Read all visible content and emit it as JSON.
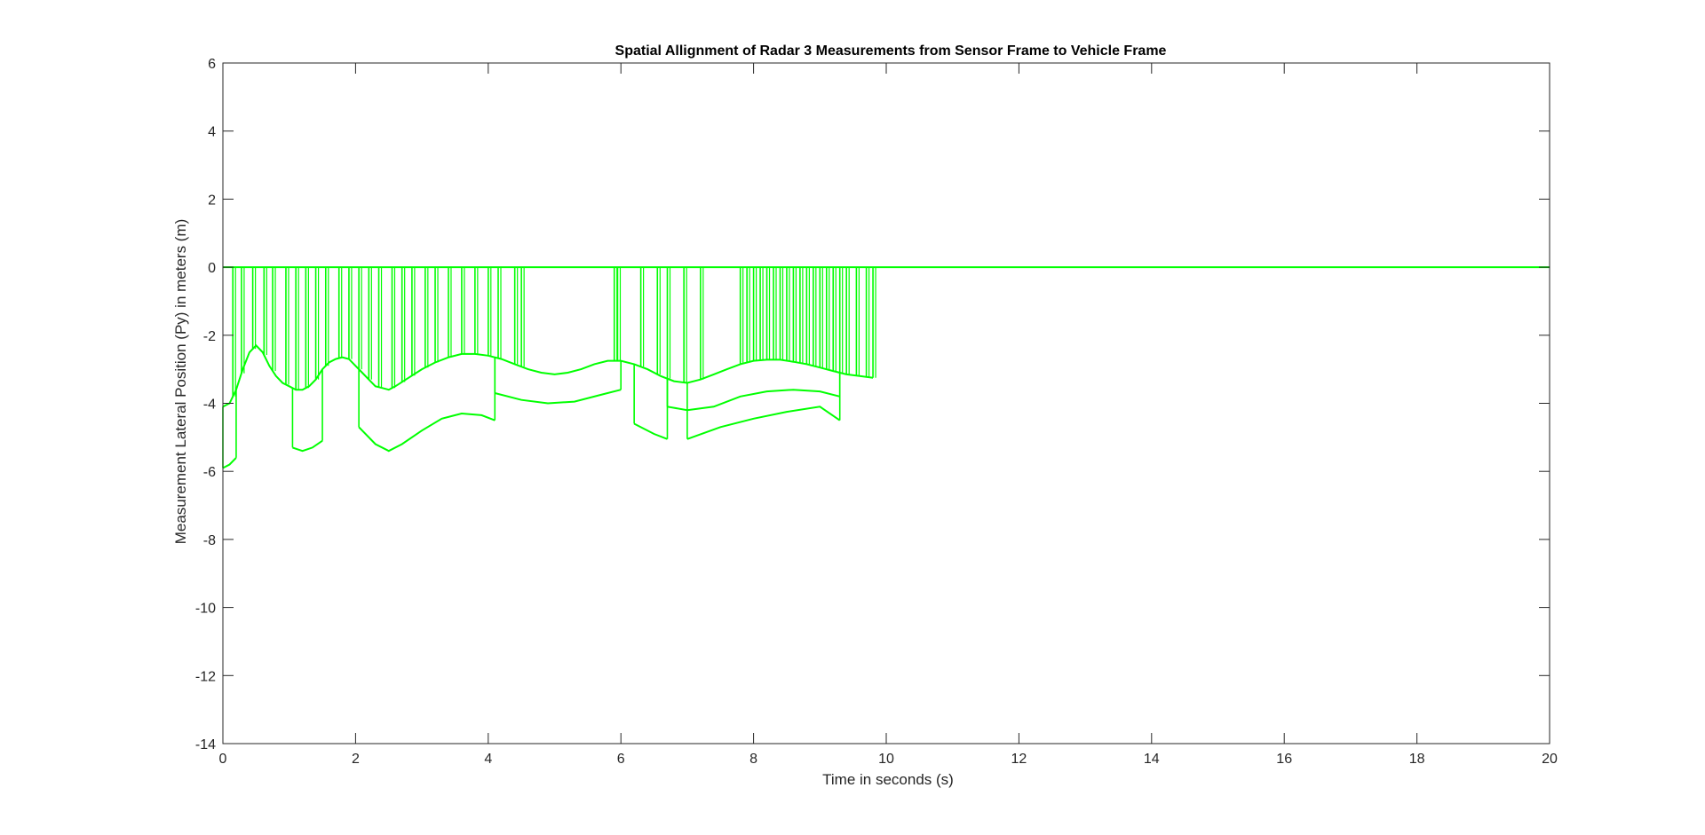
{
  "chart_data": {
    "type": "line",
    "title": "Spatial Allignment of Radar 3 Measurements from Sensor Frame to Vehicle Frame",
    "xlabel": "Time in seconds (s)",
    "ylabel": "Measurement Lateral Position (Py) in meters (m)",
    "xlim": [
      0,
      20
    ],
    "ylim": [
      -14,
      6
    ],
    "xticks": [
      0,
      2,
      4,
      6,
      8,
      10,
      12,
      14,
      16,
      18,
      20
    ],
    "yticks": [
      6,
      4,
      2,
      0,
      -2,
      -4,
      -6,
      -8,
      -10,
      -12,
      -14
    ],
    "grid": false,
    "legend": "none",
    "colors": {
      "series": "#00ff00",
      "axes": "#262626",
      "background": "#ffffff"
    },
    "series": [
      {
        "values_desc": "",
        "x": [
          0,
          0.1,
          0.2,
          0.3,
          0.4,
          0.5,
          0.6,
          0.7,
          0.8,
          0.9,
          1.0,
          1.1,
          1.2,
          1.3,
          1.4,
          1.5,
          1.6,
          1.7,
          1.8,
          1.9,
          2.0,
          2.1,
          2.2,
          2.3,
          2.4,
          2.5,
          2.6,
          2.8,
          3.0,
          3.2,
          3.4,
          3.6,
          3.8,
          4.0,
          4.2,
          4.4,
          4.6,
          4.8,
          5.0,
          5.2,
          5.4,
          5.6,
          5.8,
          6.0,
          6.2,
          6.4,
          6.6,
          6.8,
          7.0,
          7.2,
          7.4,
          7.6,
          7.8,
          8.0,
          8.2,
          8.4,
          8.6,
          8.8,
          9.0,
          9.2,
          9.4,
          9.6,
          9.8
        ],
        "y": [
          -4.1,
          -4.0,
          -3.6,
          -3.0,
          -2.5,
          -2.3,
          -2.5,
          -2.9,
          -3.2,
          -3.4,
          -3.5,
          -3.6,
          -3.6,
          -3.5,
          -3.3,
          -3.0,
          -2.8,
          -2.7,
          -2.65,
          -2.7,
          -2.9,
          -3.1,
          -3.3,
          -3.5,
          -3.55,
          -3.6,
          -3.5,
          -3.25,
          -3.0,
          -2.8,
          -2.65,
          -2.55,
          -2.55,
          -2.6,
          -2.7,
          -2.85,
          -3.0,
          -3.1,
          -3.15,
          -3.1,
          -3.0,
          -2.85,
          -2.75,
          -2.75,
          -2.85,
          -3.0,
          -3.2,
          -3.35,
          -3.4,
          -3.3,
          -3.15,
          -3.0,
          -2.85,
          -2.75,
          -2.72,
          -2.72,
          -2.78,
          -2.85,
          -2.95,
          -3.05,
          -3.15,
          -3.2,
          -3.25
        ]
      }
    ],
    "dropouts": [
      0.15,
      0.28,
      0.45,
      0.62,
      0.75,
      0.95,
      1.1,
      1.25,
      1.4,
      1.55,
      1.75,
      1.9,
      2.05,
      2.2,
      2.35,
      2.55,
      2.7,
      2.85,
      3.05,
      3.2,
      3.4,
      3.6,
      3.8,
      4.0,
      4.15,
      4.4,
      4.5,
      5.9,
      5.95,
      6.3,
      6.55,
      6.7,
      6.95,
      7.2,
      7.8,
      7.9,
      8.0,
      8.1,
      8.2,
      8.3,
      8.4,
      8.5,
      8.6,
      8.7,
      8.8,
      8.9,
      9.0,
      9.1,
      9.2,
      9.3,
      9.4,
      9.55,
      9.7,
      9.8
    ],
    "secondary": [
      {
        "x": [
          0,
          0.1,
          0.2
        ],
        "y": [
          -5.9,
          -5.8,
          -5.6
        ]
      },
      {
        "x": [
          1.05,
          1.2,
          1.35,
          1.5
        ],
        "y": [
          -5.3,
          -5.4,
          -5.3,
          -5.1
        ]
      },
      {
        "x": [
          2.05,
          2.3,
          2.5,
          2.7,
          3.0,
          3.3,
          3.6,
          3.9,
          4.1
        ],
        "y": [
          -4.7,
          -5.2,
          -5.4,
          -5.2,
          -4.8,
          -4.45,
          -4.3,
          -4.35,
          -4.5
        ]
      },
      {
        "x": [
          4.1,
          4.5,
          4.9,
          5.3,
          5.7,
          6.0
        ],
        "y": [
          -3.7,
          -3.9,
          -4.0,
          -3.95,
          -3.75,
          -3.6
        ]
      },
      {
        "x": [
          6.2,
          6.5,
          6.7
        ],
        "y": [
          -4.6,
          -4.9,
          -5.05
        ]
      },
      {
        "x": [
          6.7,
          7.0,
          7.4,
          7.8,
          8.2,
          8.6,
          9.0,
          9.3
        ],
        "y": [
          -4.1,
          -4.2,
          -4.1,
          -3.8,
          -3.65,
          -3.6,
          -3.65,
          -3.8
        ]
      },
      {
        "x": [
          7.0,
          7.5,
          8.0,
          8.5,
          9.0,
          9.3
        ],
        "y": [
          -5.05,
          -4.7,
          -4.45,
          -4.25,
          -4.1,
          -4.5
        ]
      }
    ]
  }
}
